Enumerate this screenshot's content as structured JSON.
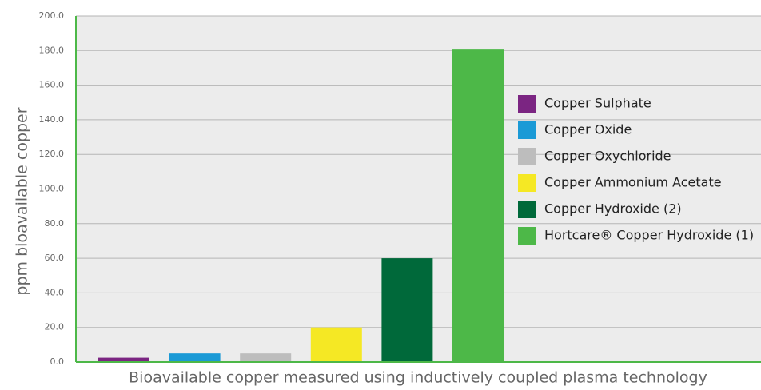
{
  "chart_data": {
    "type": "bar",
    "x_label": "Bioavailable copper measured using inductively coupled plasma technology",
    "y_label": "ppm bioavailable copper",
    "categories": [
      "Copper Sulphate",
      "Copper Oxide",
      "Copper Oxychloride",
      "Copper Ammonium Acetate",
      "Copper Hydroxide (2)",
      "Hortcare® Copper Hydroxide (1)"
    ],
    "values": [
      2.5,
      5,
      5,
      20,
      60,
      181
    ],
    "colors": [
      "#7b2582",
      "#1b9ad6",
      "#bdbdbd",
      "#f5e824",
      "#00693a",
      "#4db848"
    ],
    "ylim": [
      0,
      200
    ],
    "yticks": [
      {
        "value": 0,
        "label": "0.0"
      },
      {
        "value": 20,
        "label": "20.0"
      },
      {
        "value": 40,
        "label": "40.0"
      },
      {
        "value": 60,
        "label": "60.0"
      },
      {
        "value": 80,
        "label": "80.0"
      },
      {
        "value": 100,
        "label": "100.0"
      },
      {
        "value": 120,
        "label": "120.0"
      },
      {
        "value": 140,
        "label": "140.0"
      },
      {
        "value": 160,
        "label": "160.0"
      },
      {
        "value": 180,
        "label": "180.0"
      },
      {
        "value": 200,
        "label": "200.0"
      }
    ],
    "grid": true,
    "legend": "right"
  }
}
